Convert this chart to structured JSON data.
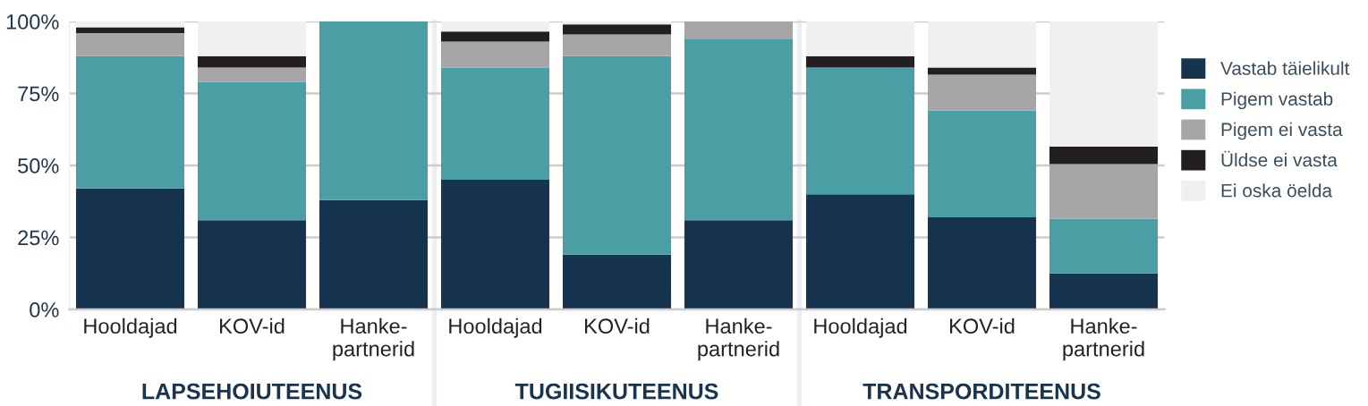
{
  "chart_data": {
    "type": "bar",
    "stacked": true,
    "categories": [
      "Hooldajad",
      "KOV-id",
      "Hanke-\npartnerid",
      "Hooldajad",
      "KOV-id",
      "Hanke-\npartnerid",
      "Hooldajad",
      "KOV-id",
      "Hanke-\npartnerid"
    ],
    "series": [
      {
        "name": "Vastab täielikult",
        "color": "#16344e",
        "values": [
          42,
          31,
          38,
          45,
          19,
          31,
          40,
          32,
          12.5
        ]
      },
      {
        "name": "Pigem vastab",
        "color": "#4a9fa5",
        "values": [
          46,
          48,
          62,
          39,
          69,
          63,
          44,
          37,
          19
        ]
      },
      {
        "name": "Pigem ei vasta",
        "color": "#a6a6a6",
        "values": [
          8,
          5,
          0,
          9,
          7.5,
          6,
          0,
          12.5,
          19
        ]
      },
      {
        "name": "Üldse ei vasta",
        "color": "#231f20",
        "values": [
          2,
          4,
          0,
          3.5,
          3.5,
          0,
          4,
          2.5,
          6
        ]
      },
      {
        "name": "Ei oska öelda",
        "color": "#eff0f2",
        "values": [
          2,
          12,
          0,
          3.5,
          1,
          0,
          12,
          16,
          43.5
        ]
      }
    ],
    "annotations": [
      "LAPSEHOIUTEENUS",
      "TUGIISIKUTEENUS",
      "TRANSPORDITEENUS"
    ],
    "ylim": [
      0,
      100
    ],
    "yticks": [
      {
        "value": 0,
        "label": "0%"
      },
      {
        "value": 25,
        "label": "25%"
      },
      {
        "value": 50,
        "label": "50%"
      },
      {
        "value": 75,
        "label": "75%"
      },
      {
        "value": 100,
        "label": "100%"
      }
    ],
    "grid": "y",
    "legend": "right"
  }
}
